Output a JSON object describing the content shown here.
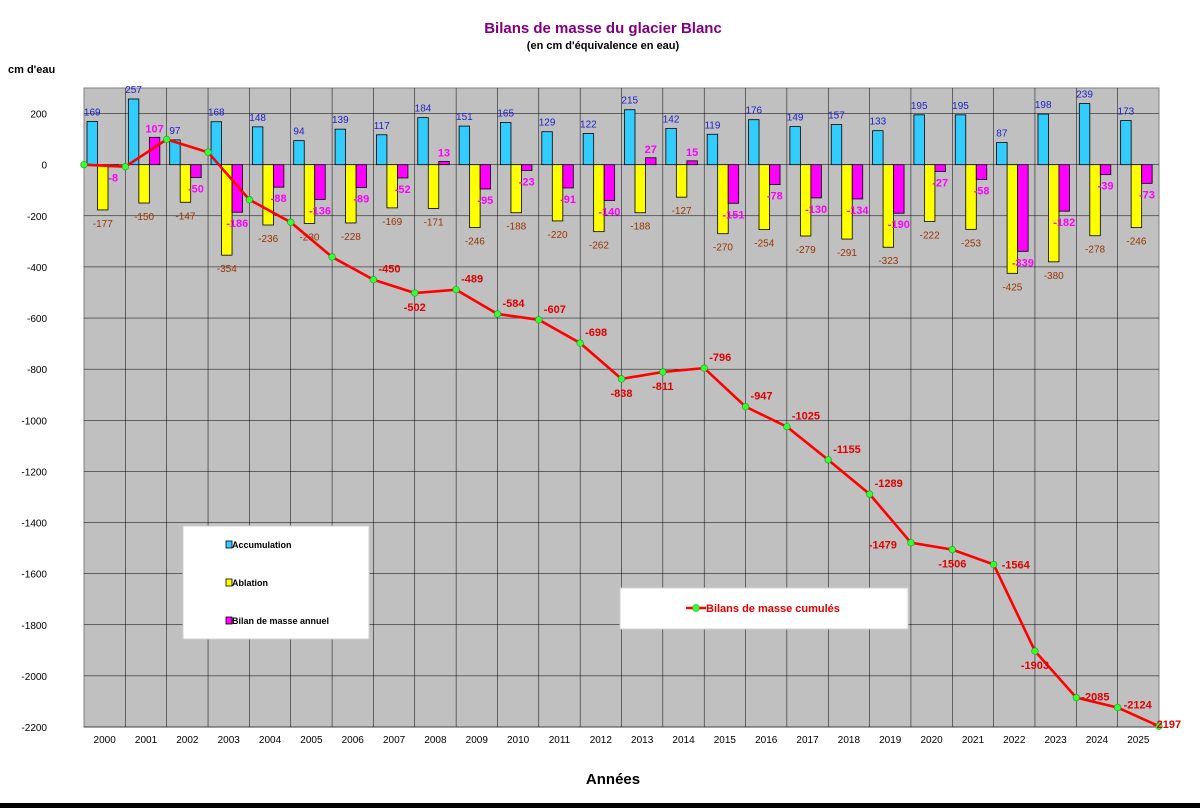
{
  "chart_data": {
    "type": "bar",
    "title": "Bilans de masse du glacier Blanc",
    "subtitle": "(en cm d'équivalence en eau)",
    "ylabel": "cm d'eau",
    "xlabel": "Années",
    "ylim": [
      -2200,
      300
    ],
    "yticks": [
      "200",
      "0",
      "-200",
      "-400",
      "-600",
      "-800",
      "-1000",
      "-1200",
      "-1400",
      "-1600",
      "-1800",
      "-2000",
      "-2200"
    ],
    "categories": [
      "2000",
      "2001",
      "2002",
      "2003",
      "2004",
      "2005",
      "2006",
      "2007",
      "2008",
      "2009",
      "2010",
      "2011",
      "2012",
      "2013",
      "2014",
      "2015",
      "2016",
      "2017",
      "2018",
      "2019",
      "2020",
      "2021",
      "2022",
      "2023",
      "2024",
      "2025"
    ],
    "grid": true,
    "colors": {
      "accumulation": "#33CCFF",
      "ablation": "#FFFF00",
      "bilan": "#FF00FF",
      "cumul": "#FF0000",
      "marker": "#33FF33",
      "plot_bg": "#C0C0C0",
      "label_acc": "#2020CC",
      "label_abl": "#993300",
      "label_bil": "#FF00FF",
      "label_cum": "#E00000",
      "title": "#800080"
    },
    "series": [
      {
        "name": "Accumulation",
        "values": [
          169,
          257,
          97,
          168,
          148,
          94,
          139,
          117,
          184,
          151,
          165,
          129,
          122,
          215,
          142,
          119,
          176,
          149,
          157,
          133,
          195,
          195,
          87,
          198,
          239,
          173
        ]
      },
      {
        "name": "Ablation",
        "values": [
          -177,
          -150,
          -147,
          -354,
          -236,
          -230,
          -228,
          -169,
          -171,
          -246,
          -188,
          -220,
          -262,
          -188,
          -127,
          -270,
          -254,
          -279,
          -291,
          -323,
          -222,
          -253,
          -425,
          -380,
          -278,
          -246
        ]
      },
      {
        "name": "Bilan de masse annuel",
        "values": [
          -8,
          107,
          -50,
          -186,
          -88,
          -136,
          -89,
          -52,
          13,
          -95,
          -23,
          -91,
          -140,
          27,
          15,
          -151,
          -78,
          -130,
          -134,
          -190,
          -27,
          -58,
          -339,
          -182,
          -39,
          -73
        ]
      }
    ],
    "cumulative": {
      "name": "Bilans de masse cumulés",
      "values": [
        0,
        -8,
        99,
        49,
        -137,
        -225,
        -361,
        -450,
        -502,
        -489,
        -584,
        -607,
        -698,
        -838,
        -811,
        -796,
        -947,
        -1025,
        -1155,
        -1289,
        -1479,
        -1506,
        -1564,
        -1903,
        -2085,
        -2124,
        -2197
      ],
      "labels": [
        "",
        "",
        "",
        "",
        "",
        "",
        "",
        "-450",
        "-502",
        "-489",
        "-584",
        "-607",
        "-698",
        "-838",
        "-811",
        "-796",
        "-947",
        "-1025",
        "-1155",
        "-1289",
        "-1479",
        "-1506",
        "-1564",
        "-1903",
        "-2085",
        "-2124",
        "-2197"
      ]
    },
    "legend": {
      "placement": "bottom-left",
      "items": [
        "Accumulation",
        "Ablation",
        "Bilan de masse annuel"
      ],
      "cumul_placement": "bottom-center"
    }
  }
}
